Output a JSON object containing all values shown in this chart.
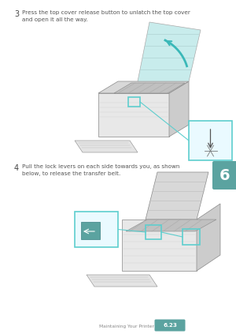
{
  "bg_color": "#ffffff",
  "tab_color": "#5ba3a0",
  "tab_number": "6",
  "step3_number": "3",
  "step3_text": "Press the top cover release button to unlatch the top cover\nand open it all the way.",
  "step4_number": "4",
  "step4_text": "Pull the lock levers on each side towards you, as shown\nbelow, to release the transfer belt.",
  "footer_text": "Maintaining Your Printer",
  "footer_page": "6.23",
  "footer_page_bg": "#5ba3a0",
  "footer_page_color": "#ffffff",
  "text_color": "#555555",
  "number_color": "#444444",
  "highlight_color": "#5ecece",
  "highlight_fill": "#eafaff",
  "printer_light": "#e8e8e8",
  "printer_mid": "#cccccc",
  "printer_dark": "#aaaaaa",
  "printer_outline": "#888888",
  "teal_part": "#5ba3a0",
  "arrow_color": "#3ab8b8"
}
